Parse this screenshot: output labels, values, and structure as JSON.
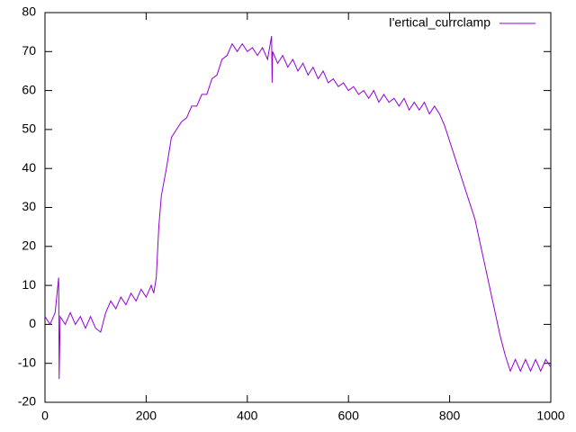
{
  "chart_data": {
    "type": "line",
    "x": [
      0,
      10,
      20,
      27,
      28,
      30,
      40,
      50,
      60,
      70,
      80,
      90,
      100,
      110,
      120,
      130,
      140,
      150,
      160,
      170,
      180,
      190,
      200,
      210,
      215,
      220,
      225,
      230,
      240,
      250,
      260,
      270,
      280,
      290,
      300,
      310,
      320,
      330,
      340,
      350,
      360,
      370,
      380,
      390,
      400,
      410,
      420,
      430,
      440,
      448,
      449,
      450,
      460,
      470,
      480,
      490,
      500,
      510,
      520,
      530,
      540,
      550,
      560,
      570,
      580,
      590,
      600,
      610,
      620,
      630,
      640,
      650,
      660,
      670,
      680,
      690,
      700,
      710,
      720,
      730,
      740,
      750,
      760,
      770,
      780,
      790,
      800,
      810,
      820,
      830,
      840,
      850,
      860,
      870,
      880,
      890,
      900,
      910,
      920,
      930,
      940,
      950,
      960,
      970,
      980,
      990,
      1000
    ],
    "series": [
      {
        "name": "I'ertical_currclamp",
        "color": "#9400d3",
        "values": [
          2,
          0,
          3,
          12,
          -14,
          2,
          0,
          3,
          0,
          2,
          -1,
          2,
          -1,
          -2,
          3,
          6,
          4,
          7,
          5,
          8,
          6,
          9,
          7,
          10,
          8,
          12,
          25,
          33,
          40,
          48,
          50,
          52,
          53,
          56,
          56,
          59,
          59,
          63,
          64,
          68,
          69,
          72,
          70,
          72,
          70,
          71,
          69,
          71,
          68,
          74,
          62,
          70,
          67,
          69,
          66,
          68,
          65,
          67,
          64,
          66,
          63,
          65,
          62,
          63,
          61,
          62,
          60,
          61,
          59,
          60,
          58,
          60,
          57,
          59,
          57,
          58,
          56,
          58,
          55,
          57,
          55,
          57,
          54,
          56,
          54,
          51,
          47,
          43,
          39,
          35,
          31,
          27,
          21,
          15,
          9,
          3,
          -3,
          -8,
          -12,
          -9,
          -12,
          -9,
          -12,
          -9,
          -12,
          -9,
          -11
        ]
      }
    ],
    "xlim": [
      0,
      1000
    ],
    "ylim": [
      -20,
      80
    ],
    "xticks": [
      0,
      200,
      400,
      600,
      800,
      1000
    ],
    "yticks": [
      -20,
      -10,
      0,
      10,
      20,
      30,
      40,
      50,
      60,
      70,
      80
    ],
    "legend": "top-right"
  }
}
